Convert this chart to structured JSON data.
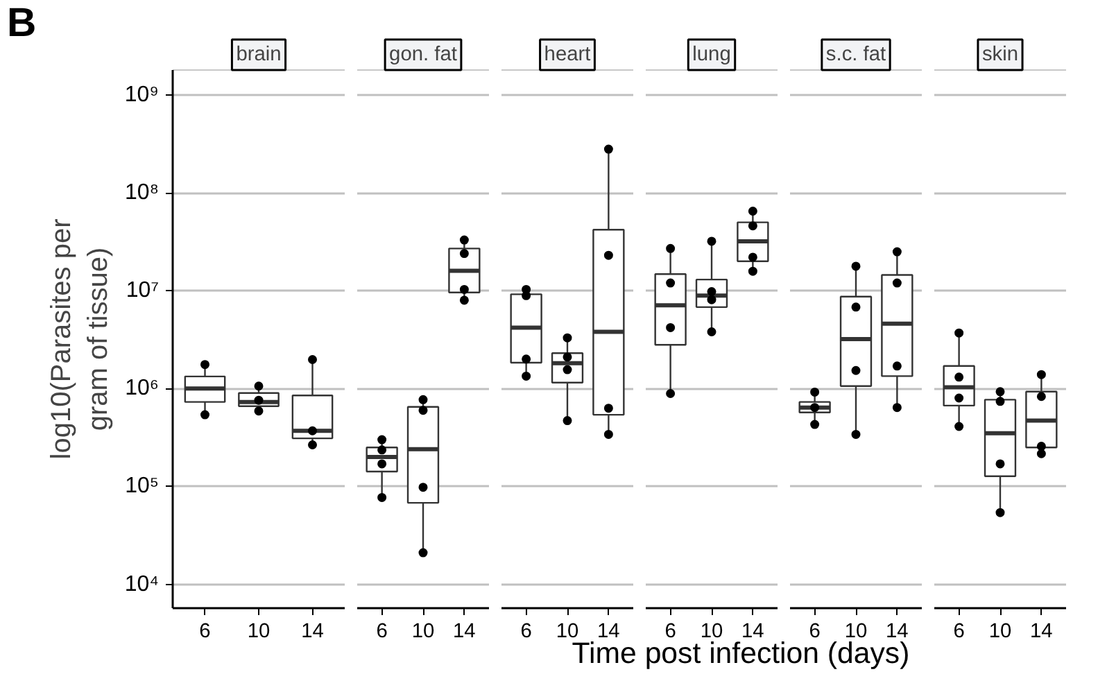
{
  "chart_data": [
    {
      "type": "box",
      "title": "brain",
      "ylabel": "log10(Parasites per\ngram of tissue)",
      "annotations": [
        "B"
      ],
      "categories": [
        "6",
        "10",
        "14"
      ],
      "log": "y",
      "grid": "y",
      "ylim": [
        5700,
        1800000000
      ],
      "yticks": [
        {
          "value": 10000,
          "label": "10⁴"
        },
        {
          "value": 100000,
          "label": "10⁵"
        },
        {
          "value": 1000000,
          "label": "10⁶"
        },
        {
          "value": 10000000,
          "label": "10⁷"
        },
        {
          "value": 100000000,
          "label": "10⁸"
        },
        {
          "value": 1000000000,
          "label": "10⁹"
        }
      ],
      "boxes": [
        {
          "low": 540000,
          "q1": 730000,
          "median": 1000000,
          "q3": 1330000,
          "high": 1760000
        },
        {
          "low": 590000,
          "q1": 660000,
          "median": 730000,
          "q3": 900000,
          "high": 1060000
        },
        {
          "low": 266000,
          "q1": 310000,
          "median": 370000,
          "q3": 850000,
          "high": 1980000
        }
      ],
      "series": [
        {
          "type": "scatter",
          "color": "#000000",
          "x": [
            "6",
            "6",
            "10",
            "10",
            "10",
            "14",
            "14",
            "14"
          ],
          "values": [
            1760000,
            540000,
            1060000,
            760000,
            590000,
            1980000,
            370000,
            266000
          ]
        }
      ]
    },
    {
      "type": "box",
      "title": "gon. fat",
      "tick_labels": "x",
      "categories": [
        "6",
        "10",
        "14"
      ],
      "log": "y",
      "grid": "y",
      "ylim": [
        5700,
        1800000000
      ],
      "boxes": [
        {
          "low": 77000,
          "q1": 142000,
          "median": 200000,
          "q3": 250000,
          "high": 300000
        },
        {
          "low": 21000,
          "q1": 68000,
          "median": 240000,
          "q3": 650000,
          "high": 770000
        },
        {
          "low": 8000000,
          "q1": 9600000,
          "median": 16000000,
          "q3": 27000000,
          "high": 33000000
        }
      ],
      "series": [
        {
          "type": "scatter",
          "color": "#000000",
          "x": [
            "6",
            "6",
            "6",
            "6",
            "10",
            "10",
            "10",
            "10",
            "14",
            "14",
            "14",
            "14"
          ],
          "values": [
            300000,
            236000,
            170000,
            77000,
            770000,
            600000,
            98000,
            21000,
            33000000,
            24000000,
            10300000,
            8000000
          ]
        }
      ]
    },
    {
      "type": "box",
      "title": "heart",
      "tick_labels": "x",
      "categories": [
        "6",
        "10",
        "14"
      ],
      "log": "y",
      "grid": "y",
      "ylim": [
        5700,
        1800000000
      ],
      "boxes": [
        {
          "low": 1340000,
          "q1": 1840000,
          "median": 4200000,
          "q3": 9200000,
          "high": 10300000
        },
        {
          "low": 470000,
          "q1": 1150000,
          "median": 1820000,
          "q3": 2300000,
          "high": 3300000
        },
        {
          "low": 340000,
          "q1": 540000,
          "median": 3800000,
          "q3": 42000000,
          "high": 280000000
        }
      ],
      "series": [
        {
          "type": "scatter",
          "color": "#000000",
          "x": [
            "6",
            "6",
            "6",
            "6",
            "10",
            "10",
            "10",
            "10",
            "14",
            "14",
            "14",
            "14"
          ],
          "values": [
            10300000,
            8900000,
            2000000,
            1340000,
            3300000,
            2100000,
            1560000,
            470000,
            280000000,
            23000000,
            630000,
            340000
          ]
        }
      ]
    },
    {
      "type": "box",
      "title": "lung",
      "xlabel": "Time post infection (days)",
      "tick_labels": "x",
      "categories": [
        "6",
        "10",
        "14"
      ],
      "log": "y",
      "grid": "y",
      "ylim": [
        5700,
        1800000000
      ],
      "boxes": [
        {
          "low": 890000,
          "q1": 2800000,
          "median": 7100000,
          "q3": 14800000,
          "high": 27000000
        },
        {
          "low": 3800000,
          "q1": 6800000,
          "median": 8900000,
          "q3": 13000000,
          "high": 32000000
        },
        {
          "low": 15800000,
          "q1": 20000000,
          "median": 32000000,
          "q3": 50000000,
          "high": 65000000
        }
      ],
      "series": [
        {
          "type": "scatter",
          "color": "#000000",
          "x": [
            "6",
            "6",
            "6",
            "6",
            "10",
            "10",
            "10",
            "10",
            "14",
            "14",
            "14",
            "14"
          ],
          "values": [
            27000000,
            12000000,
            4200000,
            890000,
            32000000,
            9800000,
            8100000,
            3800000,
            65000000,
            46000000,
            22000000,
            15800000
          ]
        }
      ]
    },
    {
      "type": "box",
      "title": "s.c. fat",
      "tick_labels": "x",
      "categories": [
        "6",
        "10",
        "14"
      ],
      "log": "y",
      "grid": "y",
      "ylim": [
        5700,
        1800000000
      ],
      "boxes": [
        {
          "low": 430000,
          "q1": 570000,
          "median": 640000,
          "q3": 730000,
          "high": 920000
        },
        {
          "low": 340000,
          "q1": 1060000,
          "median": 3200000,
          "q3": 8700000,
          "high": 17800000
        },
        {
          "low": 640000,
          "q1": 1340000,
          "median": 4600000,
          "q3": 14500000,
          "high": 25000000
        }
      ],
      "series": [
        {
          "type": "scatter",
          "color": "#000000",
          "x": [
            "6",
            "6",
            "6",
            "10",
            "10",
            "10",
            "10",
            "14",
            "14",
            "14",
            "14"
          ],
          "values": [
            920000,
            640000,
            430000,
            17800000,
            6800000,
            1530000,
            340000,
            25000000,
            12000000,
            1700000,
            640000
          ]
        }
      ]
    },
    {
      "type": "box",
      "title": "skin",
      "tick_labels": "x",
      "categories": [
        "6",
        "10",
        "14"
      ],
      "log": "y",
      "grid": "y",
      "ylim": [
        5700,
        1800000000
      ],
      "boxes": [
        {
          "low": 410000,
          "q1": 670000,
          "median": 1030000,
          "q3": 1700000,
          "high": 3700000
        },
        {
          "low": 54000,
          "q1": 127000,
          "median": 350000,
          "q3": 770000,
          "high": 930000
        },
        {
          "low": 216000,
          "q1": 250000,
          "median": 470000,
          "q3": 930000,
          "high": 1390000
        }
      ],
      "series": [
        {
          "type": "scatter",
          "color": "#000000",
          "x": [
            "6",
            "6",
            "6",
            "6",
            "10",
            "10",
            "10",
            "10",
            "14",
            "14",
            "14",
            "14"
          ],
          "values": [
            3700000,
            1310000,
            800000,
            410000,
            930000,
            740000,
            170000,
            54000,
            1390000,
            830000,
            257000,
            216000
          ]
        }
      ]
    }
  ]
}
